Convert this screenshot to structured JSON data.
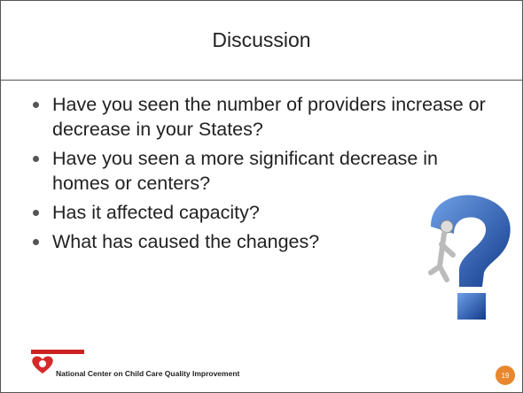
{
  "title": "Discussion",
  "bullets": [
    "Have you seen the number of providers increase or decrease in your States?",
    "Have you seen a more significant decrease in homes or centers?",
    "Has it affected capacity?",
    "What has caused the changes?"
  ],
  "footer": {
    "organization": "National Center on Child Care Quality Improvement",
    "page_number": "19"
  }
}
